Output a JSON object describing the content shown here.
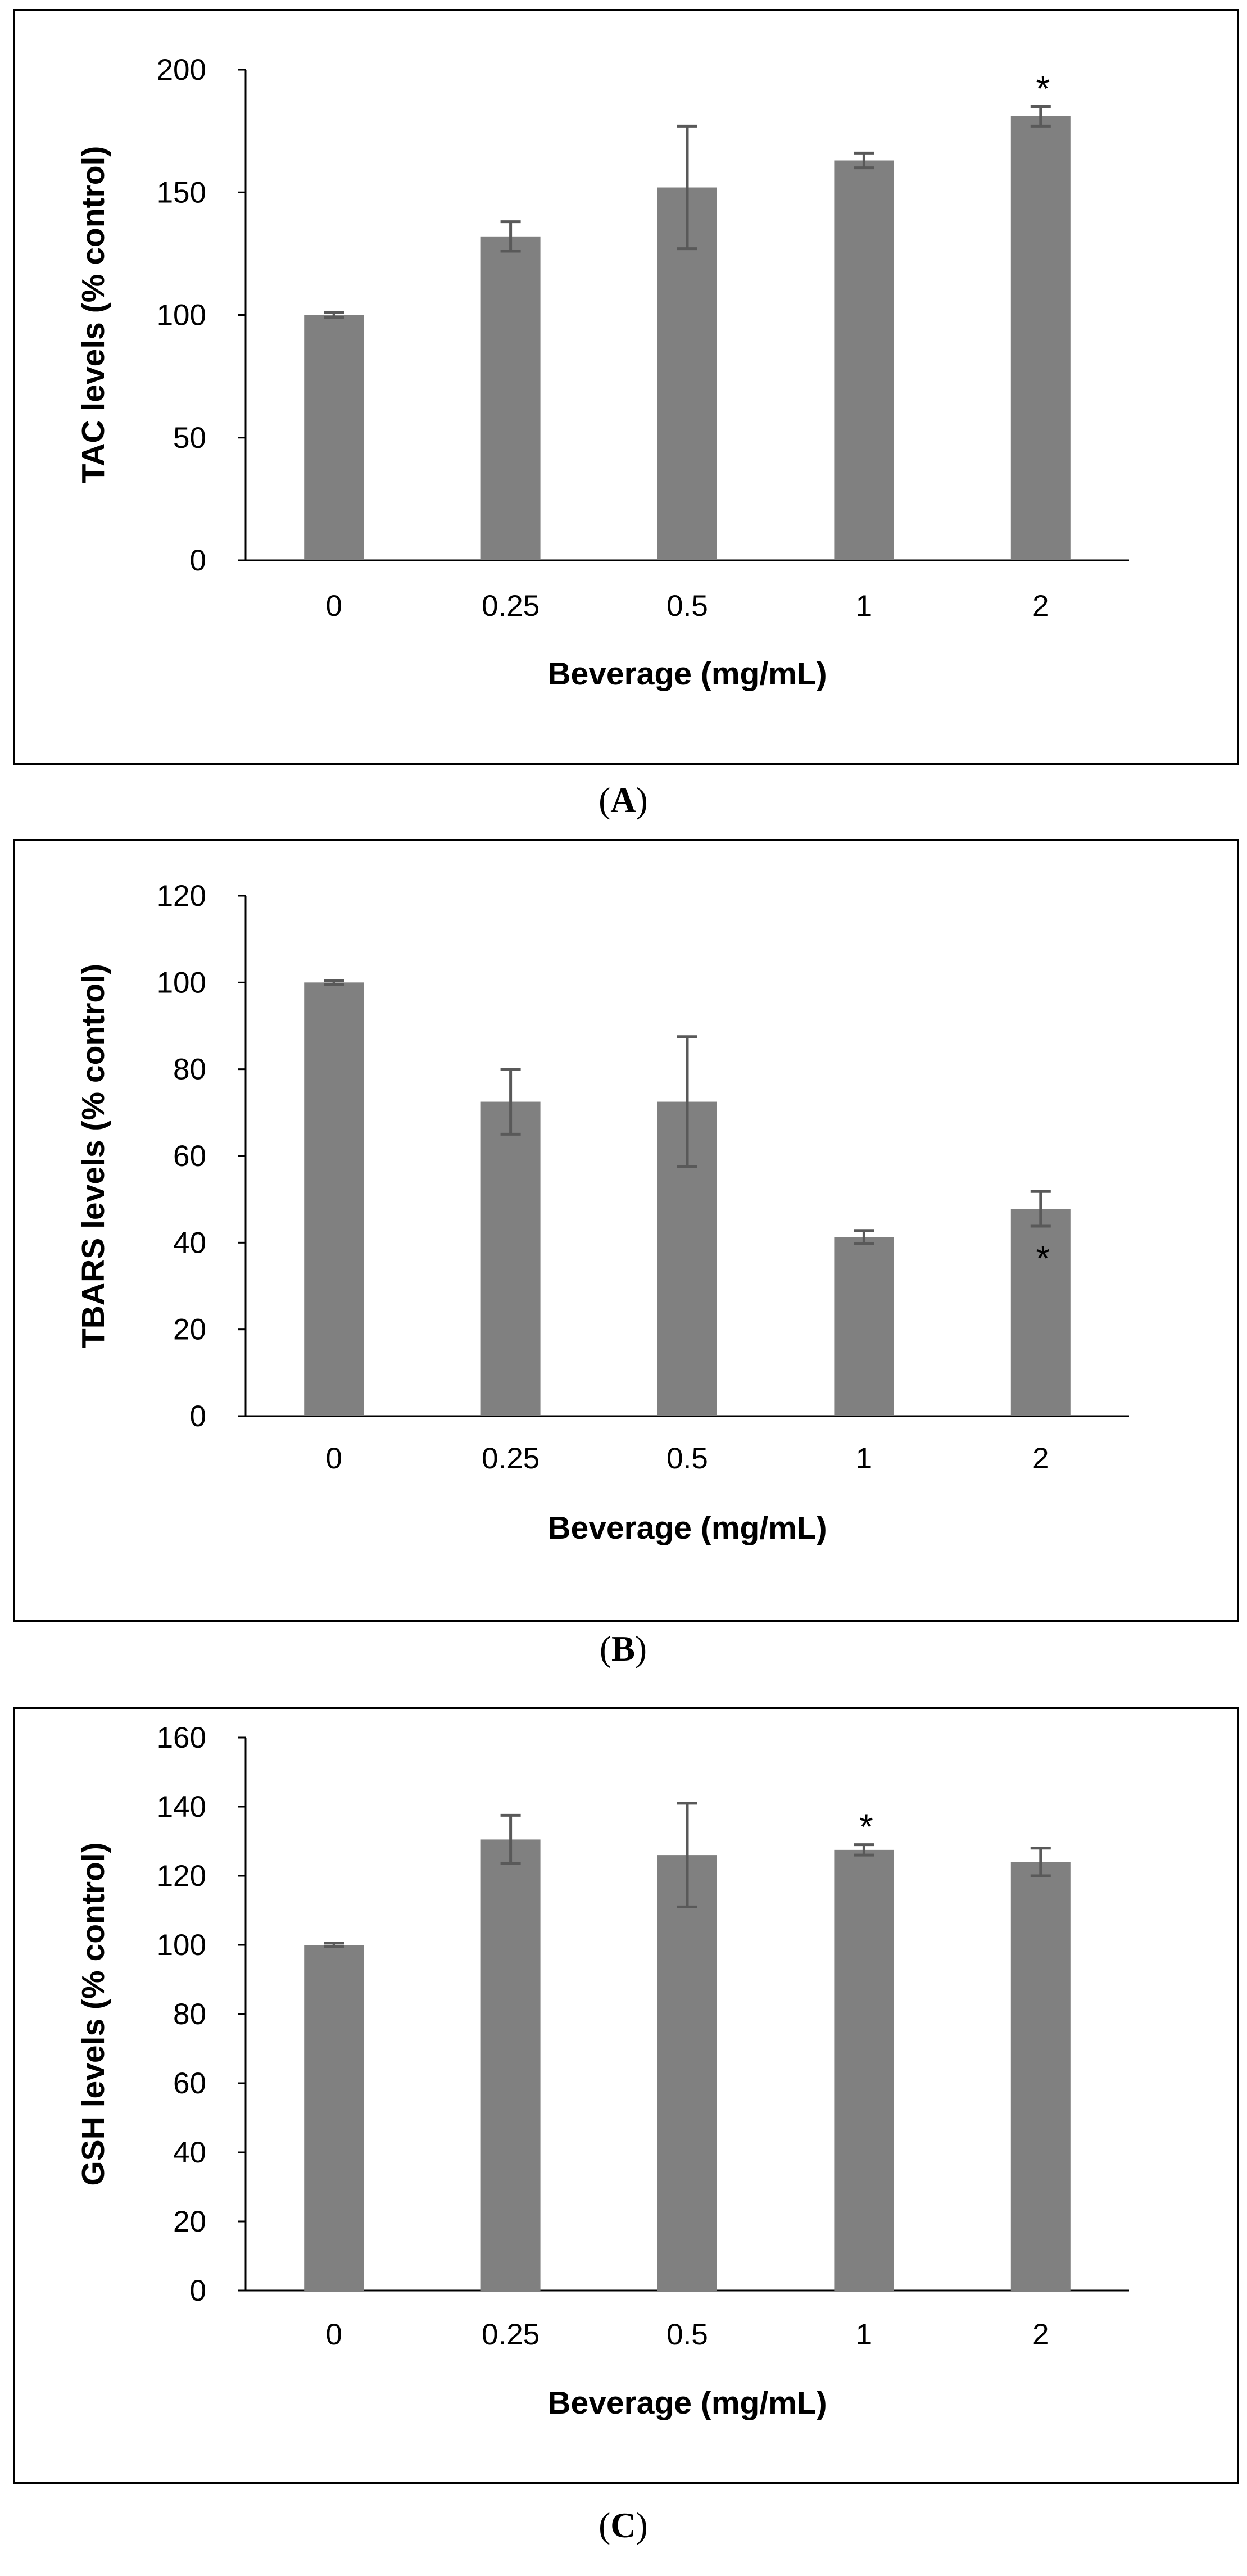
{
  "bar_color": "#808080",
  "error_color": "#595959",
  "frame_color": "#000000",
  "chart_data": [
    {
      "type": "bar",
      "panel": "A",
      "categories": [
        "0",
        "0.25",
        "0.5",
        "1",
        "2"
      ],
      "values": [
        100,
        132,
        152,
        163,
        181
      ],
      "errors": [
        1,
        6,
        25,
        3,
        4
      ],
      "significance": [
        "",
        "",
        "",
        "",
        "*"
      ],
      "xlabel": "Beverage (mg/mL)",
      "ylabel": "TAC levels (% control)",
      "ylim": [
        0,
        200
      ],
      "yticks": [
        0,
        50,
        100,
        150,
        200
      ],
      "grid": false,
      "caption": "A"
    },
    {
      "type": "bar",
      "panel": "B",
      "categories": [
        "0",
        "0.25",
        "0.5",
        "1",
        "2"
      ],
      "values": [
        100,
        72.5,
        72.5,
        41.3,
        47.8
      ],
      "errors": [
        0.5,
        7.5,
        15,
        1.5,
        4
      ],
      "significance": [
        "",
        "",
        "",
        "",
        "*"
      ],
      "xlabel": "Beverage (mg/mL)",
      "ylabel": "TBARS levels (% control)",
      "ylim": [
        0,
        120
      ],
      "yticks": [
        0,
        20,
        40,
        60,
        80,
        100,
        120
      ],
      "grid": false,
      "caption": "B"
    },
    {
      "type": "bar",
      "panel": "C",
      "categories": [
        "0",
        "0.25",
        "0.5",
        "1",
        "2"
      ],
      "values": [
        100,
        130.5,
        126,
        127.5,
        124
      ],
      "errors": [
        0.5,
        7,
        15,
        1.5,
        4
      ],
      "significance": [
        "",
        "",
        "",
        "*",
        ""
      ],
      "xlabel": "Beverage (mg/mL)",
      "ylabel": "GSH levels (% control)",
      "ylim": [
        0,
        160
      ],
      "yticks": [
        0,
        20,
        40,
        60,
        80,
        100,
        120,
        140,
        160
      ],
      "grid": false,
      "caption": "C"
    }
  ]
}
